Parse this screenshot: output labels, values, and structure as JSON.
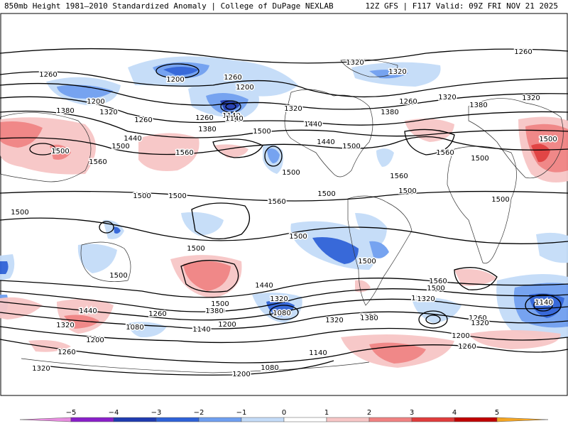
{
  "header": {
    "title": "850mb Height 1981–2010 Standardized Anomaly | College of DuPage NEXLAB",
    "valid": "12Z GFS | F117 Valid: 09Z FRI NOV 21 2025"
  },
  "contour_labels": [
    "1320",
    "1260",
    "1260",
    "1200",
    "1260",
    "1200",
    "1200",
    "1320",
    "1320",
    "1320",
    "1260",
    "1140",
    "1380",
    "1380",
    "1320",
    "1260",
    "1440",
    "1380",
    "1260",
    "1320",
    "1440",
    "1500",
    "1380",
    "1500",
    "1440",
    "1500",
    "1500",
    "1560",
    "1500",
    "1560",
    "1560",
    "1500",
    "1560",
    "1500",
    "1500",
    "1560",
    "1500",
    "1500",
    "1500",
    "1500",
    "1500",
    "1500",
    "1500",
    "1500",
    "1500",
    "1560",
    "1500",
    "1440",
    "1440",
    "1560",
    "1320",
    "1380",
    "1500",
    "1320",
    "1380",
    "1440",
    "1260",
    "1320",
    "1260",
    "1320",
    "1080",
    "1140",
    "1260",
    "1380",
    "1200",
    "1140",
    "1200",
    "1080",
    "1140",
    "1080",
    "1200",
    "1260",
    "1200",
    "1260",
    "1320",
    "1140",
    "1320",
    "1380"
  ],
  "colorbar": {
    "ticks": [
      "−5",
      "−4",
      "−3",
      "−2",
      "−1",
      "0",
      "1",
      "2",
      "3",
      "4",
      "5"
    ],
    "colors": [
      "#e88ee0",
      "#8a1fc9",
      "#1f3bb0",
      "#2e62d8",
      "#6f9ff0",
      "#c4dcf8",
      "#ffffff",
      "#f7c6c6",
      "#f08282",
      "#e03c3c",
      "#c00000",
      "#f5a623"
    ]
  },
  "colors": {
    "neg1": "#c4dcf8",
    "neg2": "#6f9ff0",
    "neg3": "#2e62d8",
    "neg4": "#1f3bb0",
    "pos1": "#f7c6c6",
    "pos2": "#f08282",
    "pos3": "#e03c3c"
  }
}
